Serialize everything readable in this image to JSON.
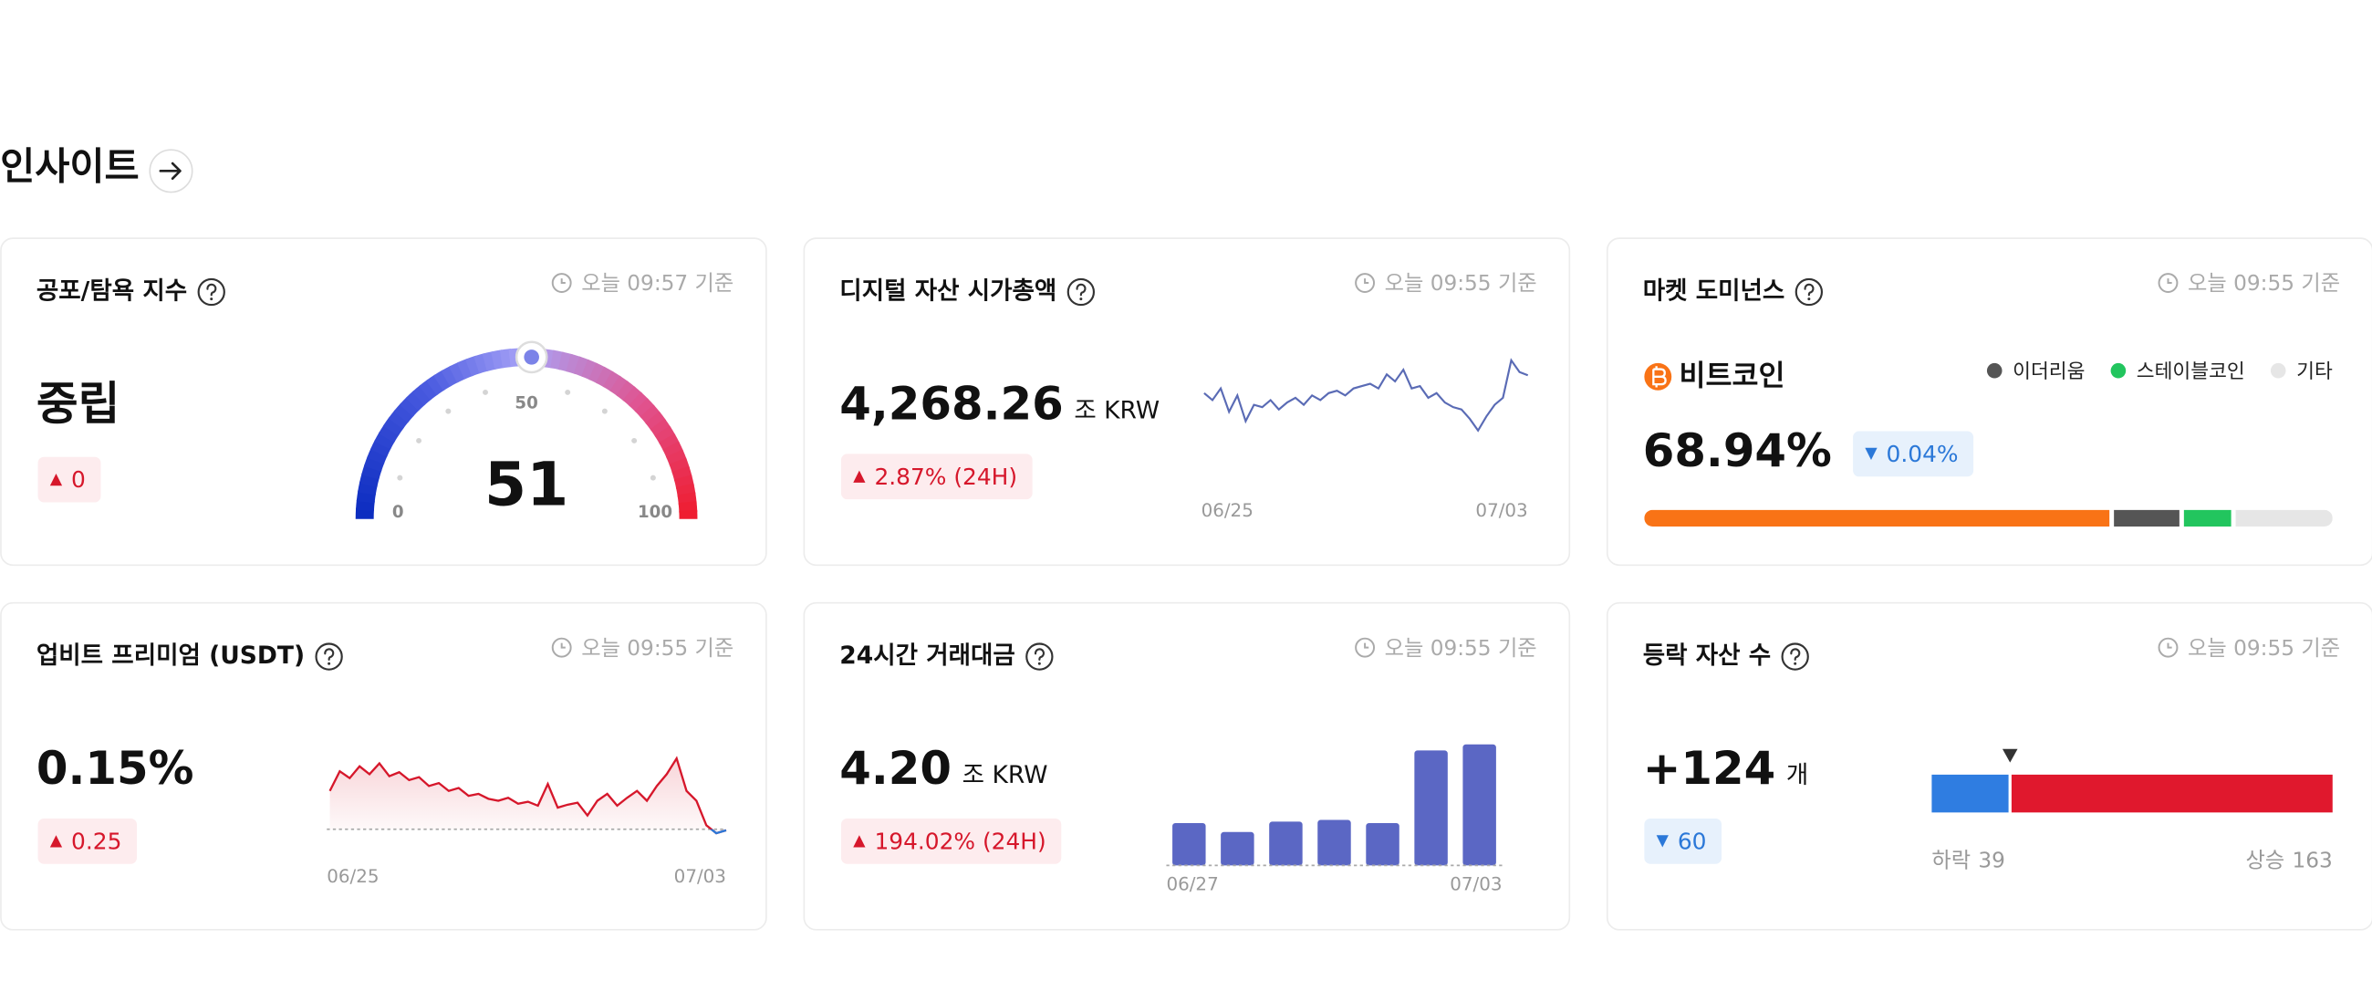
{
  "header": {
    "title": "인사이트"
  },
  "cards": [
    {
      "title": "공포/탐욕 지수",
      "updated": "오늘 09:57 기준",
      "status": "중립",
      "change": {
        "text": "0",
        "direction": "up"
      },
      "chart_data": {
        "type": "gauge",
        "value": 51,
        "range": [
          0,
          100
        ],
        "ticks": [
          0,
          50,
          100
        ]
      }
    },
    {
      "title": "디지털 자산 시가총액",
      "updated": "오늘 09:55 기준",
      "value": "4,268.26",
      "unit": "조 KRW",
      "change": {
        "text": "2.87% (24H)",
        "direction": "up"
      },
      "chart_data": {
        "type": "line",
        "color": "#5a6bb5",
        "ylim": [
          4100,
          4320
        ],
        "date_labels": [
          "06/25",
          "07/03"
        ],
        "values": [
          4230,
          4215,
          4240,
          4190,
          4225,
          4170,
          4205,
          4200,
          4215,
          4195,
          4210,
          4220,
          4205,
          4225,
          4215,
          4230,
          4235,
          4225,
          4240,
          4245,
          4250,
          4240,
          4270,
          4255,
          4280,
          4240,
          4245,
          4220,
          4230,
          4210,
          4200,
          4195,
          4175,
          4150,
          4180,
          4205,
          4220,
          4300,
          4275,
          4268
        ]
      }
    },
    {
      "title": "마켓 도미넌스",
      "updated": "오늘 09:55 기준",
      "change": {
        "text": "0.04%",
        "direction": "down"
      },
      "chart_data": {
        "type": "stacked-bar",
        "series": [
          {
            "name": "비트코인",
            "value": 68.94,
            "value_label": "68.94%",
            "color": "#f97316"
          },
          {
            "name": "이더리움",
            "value": 9.7,
            "color": "#555555"
          },
          {
            "name": "스테이블코인",
            "value": 7.0,
            "color": "#22c55e"
          },
          {
            "name": "기타",
            "value": 14.36,
            "color": "#e6e6e6"
          }
        ]
      }
    },
    {
      "title": "업비트 프리미엄 (USDT)",
      "updated": "오늘 09:55 기준",
      "value": "0.15%",
      "change": {
        "text": "0.25",
        "direction": "up"
      },
      "chart_data": {
        "type": "line",
        "color": "#d6172b",
        "below_color": "#2b78d8",
        "baseline": 0.16,
        "ylim": [
          0.1,
          0.9
        ],
        "date_labels": [
          "06/25",
          "07/03"
        ],
        "values": [
          0.55,
          0.75,
          0.68,
          0.8,
          0.72,
          0.83,
          0.7,
          0.74,
          0.66,
          0.69,
          0.6,
          0.63,
          0.55,
          0.58,
          0.5,
          0.52,
          0.47,
          0.45,
          0.48,
          0.42,
          0.44,
          0.4,
          0.62,
          0.38,
          0.41,
          0.43,
          0.3,
          0.45,
          0.52,
          0.4,
          0.48,
          0.55,
          0.45,
          0.6,
          0.72,
          0.88,
          0.55,
          0.45,
          0.2,
          0.12,
          0.15
        ]
      }
    },
    {
      "title": "24시간 거래대금",
      "updated": "오늘 09:55 기준",
      "value": "4.20",
      "unit": "조 KRW",
      "change": {
        "text": "194.02% (24H)",
        "direction": "up"
      },
      "chart_data": {
        "type": "bar",
        "color": "#5b67c4",
        "ylim": [
          0,
          4.2
        ],
        "categories": [
          "06/27",
          null,
          null,
          null,
          null,
          null,
          "07/03"
        ],
        "values": [
          1.47,
          1.16,
          1.52,
          1.58,
          1.47,
          3.99,
          4.2
        ]
      }
    },
    {
      "title": "등락 자산 수",
      "updated": "오늘 09:55 기준",
      "value": "+124",
      "unit": "개",
      "change": {
        "text": "60",
        "direction": "down"
      },
      "chart_data": {
        "type": "split-bar",
        "series": [
          {
            "name": "하락",
            "value": 39,
            "color": "#2f7de1"
          },
          {
            "name": "상승",
            "value": 163,
            "color": "#e0182d"
          }
        ]
      }
    }
  ]
}
